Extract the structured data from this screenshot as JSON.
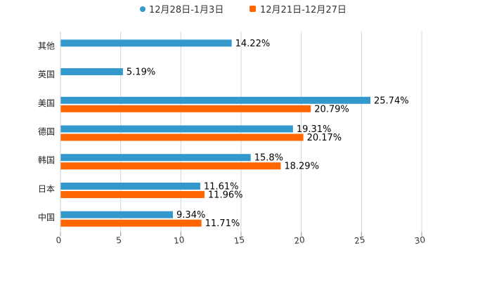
{
  "chart_data": {
    "type": "bar",
    "orientation": "horizontal",
    "title": "",
    "xlabel": "",
    "ylabel": "",
    "xlim": [
      0,
      30
    ],
    "ticks": [
      "0",
      "5",
      "10",
      "15",
      "20",
      "25",
      "30"
    ],
    "tick_values": [
      0,
      5,
      10,
      15,
      20,
      25,
      30
    ],
    "grid": true,
    "legend_position": "top-center",
    "categories": [
      "其他",
      "英国",
      "美国",
      "德国",
      "韩国",
      "日本",
      "中国"
    ],
    "series": [
      {
        "name": "12月28日-1月3日",
        "color": "#3399cc",
        "values": [
          14.22,
          5.19,
          25.74,
          19.31,
          15.8,
          11.61,
          9.34
        ],
        "labels": [
          "14.22%",
          "5.19%",
          "25.74%",
          "19.31%",
          "15.8%",
          "11.61%",
          "9.34%"
        ]
      },
      {
        "name": "12月21日-12月27日",
        "color": "#ff6600",
        "values": [
          null,
          null,
          20.79,
          20.17,
          18.29,
          11.96,
          11.71
        ],
        "labels": [
          null,
          null,
          "20.79%",
          "20.17%",
          "18.29%",
          "11.96%",
          "11.71%"
        ]
      }
    ]
  }
}
